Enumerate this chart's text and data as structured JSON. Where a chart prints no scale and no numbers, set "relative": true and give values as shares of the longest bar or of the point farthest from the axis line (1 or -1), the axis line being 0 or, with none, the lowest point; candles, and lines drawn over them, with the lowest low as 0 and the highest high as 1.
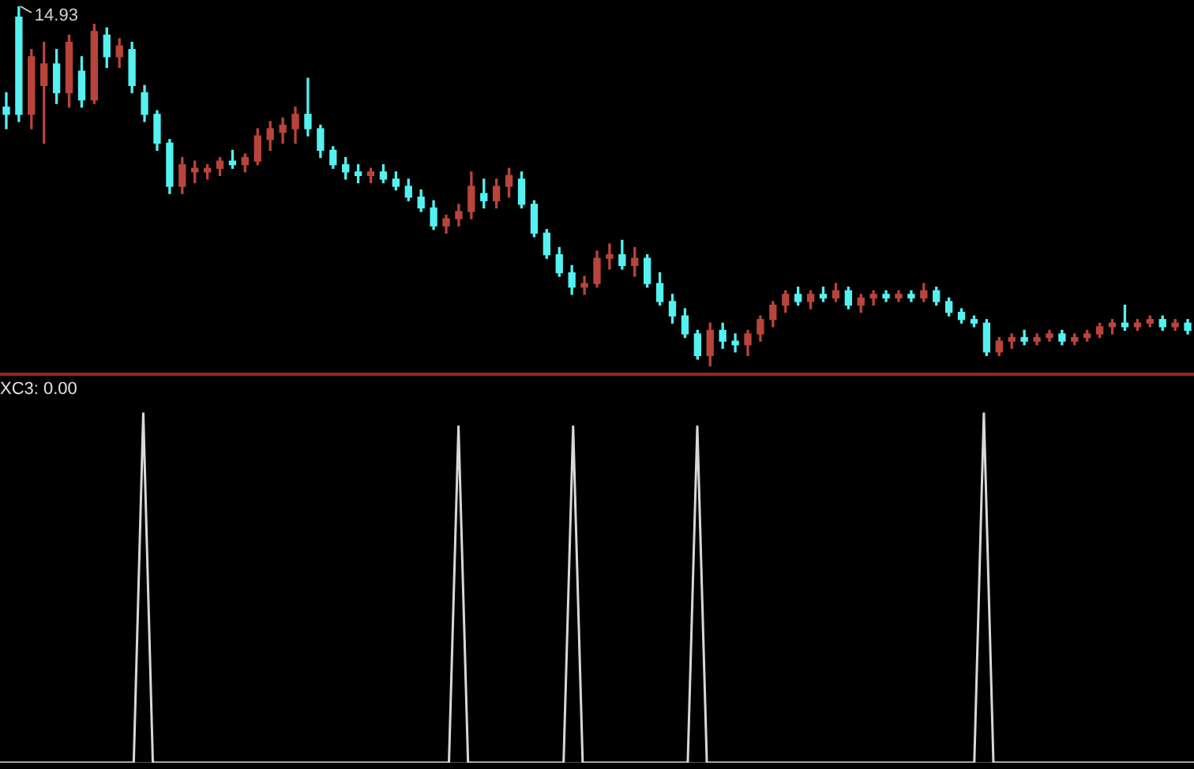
{
  "chart_data": [
    {
      "type": "candlestick",
      "relative": true,
      "annotations": [
        "14.93"
      ],
      "categories": [
        null,
        null,
        null,
        null,
        null,
        null,
        null,
        null,
        null,
        null,
        null,
        null,
        null,
        null,
        null,
        null,
        null,
        null,
        null,
        null,
        null,
        null,
        null,
        null,
        null,
        null,
        null,
        null,
        null,
        null,
        null,
        null,
        null,
        null,
        null,
        null,
        null,
        null,
        null,
        null,
        null,
        null,
        null,
        null,
        null,
        null,
        null,
        null,
        null,
        null,
        null,
        null,
        null,
        null,
        null,
        null,
        null,
        null,
        null,
        null,
        null,
        null,
        null,
        null,
        null,
        null,
        null,
        null,
        null,
        null,
        null,
        null,
        null,
        null,
        null,
        null,
        null,
        null,
        null,
        null,
        null,
        null,
        null,
        null,
        null,
        null,
        null,
        null,
        null,
        null,
        null,
        null,
        null,
        null,
        null
      ],
      "ohlc": [
        [
          0.72,
          0.76,
          0.66,
          0.7
        ],
        [
          0.97,
          1.0,
          0.68,
          0.7
        ],
        [
          0.7,
          0.88,
          0.66,
          0.86
        ],
        [
          0.78,
          0.9,
          0.62,
          0.84
        ],
        [
          0.84,
          0.88,
          0.73,
          0.76
        ],
        [
          0.76,
          0.92,
          0.72,
          0.9
        ],
        [
          0.82,
          0.86,
          0.72,
          0.74
        ],
        [
          0.74,
          0.95,
          0.73,
          0.93
        ],
        [
          0.92,
          0.94,
          0.83,
          0.86
        ],
        [
          0.86,
          0.91,
          0.83,
          0.89
        ],
        [
          0.88,
          0.9,
          0.76,
          0.78
        ],
        [
          0.76,
          0.78,
          0.68,
          0.7
        ],
        [
          0.7,
          0.71,
          0.6,
          0.62
        ],
        [
          0.62,
          0.63,
          0.48,
          0.5
        ],
        [
          0.5,
          0.58,
          0.48,
          0.56
        ],
        [
          0.54,
          0.57,
          0.51,
          0.55
        ],
        [
          0.54,
          0.56,
          0.52,
          0.55
        ],
        [
          0.55,
          0.58,
          0.53,
          0.57
        ],
        [
          0.57,
          0.6,
          0.55,
          0.56
        ],
        [
          0.56,
          0.59,
          0.54,
          0.58
        ],
        [
          0.57,
          0.66,
          0.56,
          0.64
        ],
        [
          0.63,
          0.68,
          0.6,
          0.66
        ],
        [
          0.65,
          0.69,
          0.62,
          0.67
        ],
        [
          0.66,
          0.72,
          0.62,
          0.7
        ],
        [
          0.7,
          0.8,
          0.64,
          0.66
        ],
        [
          0.66,
          0.67,
          0.58,
          0.6
        ],
        [
          0.6,
          0.61,
          0.55,
          0.56
        ],
        [
          0.56,
          0.58,
          0.52,
          0.54
        ],
        [
          0.54,
          0.56,
          0.51,
          0.53
        ],
        [
          0.53,
          0.55,
          0.51,
          0.54
        ],
        [
          0.54,
          0.56,
          0.51,
          0.52
        ],
        [
          0.52,
          0.54,
          0.49,
          0.5
        ],
        [
          0.5,
          0.52,
          0.46,
          0.47
        ],
        [
          0.47,
          0.49,
          0.43,
          0.44
        ],
        [
          0.44,
          0.46,
          0.38,
          0.39
        ],
        [
          0.39,
          0.42,
          0.37,
          0.41
        ],
        [
          0.41,
          0.45,
          0.39,
          0.43
        ],
        [
          0.43,
          0.54,
          0.41,
          0.5
        ],
        [
          0.48,
          0.52,
          0.44,
          0.46
        ],
        [
          0.46,
          0.52,
          0.44,
          0.5
        ],
        [
          0.5,
          0.55,
          0.47,
          0.53
        ],
        [
          0.52,
          0.54,
          0.44,
          0.45
        ],
        [
          0.45,
          0.46,
          0.36,
          0.37
        ],
        [
          0.37,
          0.38,
          0.3,
          0.31
        ],
        [
          0.31,
          0.33,
          0.25,
          0.26
        ],
        [
          0.26,
          0.28,
          0.2,
          0.22
        ],
        [
          0.22,
          0.25,
          0.2,
          0.23
        ],
        [
          0.23,
          0.32,
          0.22,
          0.3
        ],
        [
          0.3,
          0.34,
          0.27,
          0.31
        ],
        [
          0.31,
          0.35,
          0.27,
          0.28
        ],
        [
          0.28,
          0.33,
          0.25,
          0.3
        ],
        [
          0.3,
          0.31,
          0.22,
          0.23
        ],
        [
          0.23,
          0.26,
          0.17,
          0.18
        ],
        [
          0.18,
          0.2,
          0.12,
          0.14
        ],
        [
          0.14,
          0.16,
          0.08,
          0.09
        ],
        [
          0.09,
          0.1,
          0.02,
          0.03
        ],
        [
          0.03,
          0.12,
          0.0,
          0.1
        ],
        [
          0.1,
          0.12,
          0.05,
          0.07
        ],
        [
          0.07,
          0.09,
          0.04,
          0.06
        ],
        [
          0.06,
          0.1,
          0.03,
          0.09
        ],
        [
          0.09,
          0.14,
          0.07,
          0.13
        ],
        [
          0.13,
          0.18,
          0.11,
          0.17
        ],
        [
          0.17,
          0.21,
          0.15,
          0.2
        ],
        [
          0.2,
          0.22,
          0.17,
          0.18
        ],
        [
          0.18,
          0.21,
          0.16,
          0.2
        ],
        [
          0.2,
          0.22,
          0.18,
          0.19
        ],
        [
          0.19,
          0.23,
          0.18,
          0.21
        ],
        [
          0.21,
          0.22,
          0.16,
          0.17
        ],
        [
          0.17,
          0.2,
          0.15,
          0.19
        ],
        [
          0.19,
          0.21,
          0.17,
          0.2
        ],
        [
          0.2,
          0.21,
          0.18,
          0.19
        ],
        [
          0.19,
          0.21,
          0.18,
          0.2
        ],
        [
          0.2,
          0.21,
          0.18,
          0.19
        ],
        [
          0.19,
          0.23,
          0.18,
          0.21
        ],
        [
          0.21,
          0.22,
          0.17,
          0.18
        ],
        [
          0.18,
          0.19,
          0.14,
          0.15
        ],
        [
          0.15,
          0.16,
          0.12,
          0.13
        ],
        [
          0.13,
          0.14,
          0.11,
          0.12
        ],
        [
          0.12,
          0.13,
          0.03,
          0.04
        ],
        [
          0.04,
          0.08,
          0.03,
          0.07
        ],
        [
          0.07,
          0.09,
          0.05,
          0.08
        ],
        [
          0.08,
          0.1,
          0.06,
          0.07
        ],
        [
          0.07,
          0.09,
          0.06,
          0.08
        ],
        [
          0.08,
          0.1,
          0.07,
          0.09
        ],
        [
          0.09,
          0.1,
          0.06,
          0.07
        ],
        [
          0.07,
          0.09,
          0.06,
          0.08
        ],
        [
          0.08,
          0.1,
          0.07,
          0.09
        ],
        [
          0.09,
          0.12,
          0.08,
          0.11
        ],
        [
          0.11,
          0.13,
          0.09,
          0.12
        ],
        [
          0.12,
          0.17,
          0.1,
          0.11
        ],
        [
          0.11,
          0.13,
          0.1,
          0.12
        ],
        [
          0.12,
          0.14,
          0.11,
          0.13
        ],
        [
          0.13,
          0.14,
          0.1,
          0.11
        ],
        [
          0.11,
          0.13,
          0.1,
          0.12
        ],
        [
          0.12,
          0.13,
          0.09,
          0.1
        ]
      ]
    },
    {
      "type": "line",
      "relative": true,
      "title": "XC3: 0.00",
      "color": "#d8d8d8",
      "categories": [
        null,
        null,
        null,
        null,
        null,
        null,
        null,
        null,
        null,
        null,
        null,
        null,
        null,
        null,
        null,
        null,
        null,
        null,
        null,
        null,
        null,
        null,
        null,
        null,
        null,
        null,
        null,
        null,
        null,
        null,
        null,
        null,
        null,
        null,
        null,
        null,
        null,
        null,
        null,
        null,
        null,
        null,
        null,
        null,
        null,
        null,
        null,
        null,
        null,
        null,
        null,
        null,
        null,
        null,
        null,
        null,
        null,
        null,
        null,
        null,
        null,
        null,
        null,
        null,
        null,
        null,
        null,
        null,
        null,
        null,
        null,
        null,
        null,
        null,
        null,
        null,
        null,
        null,
        null,
        null,
        null,
        null,
        null,
        null,
        null,
        null,
        null,
        null,
        null,
        null,
        null,
        null,
        null,
        null,
        null,
        null,
        null,
        null,
        null,
        null,
        null,
        null,
        null,
        null,
        null,
        null,
        null,
        null,
        null,
        null,
        null,
        null,
        null,
        null,
        null,
        null,
        null,
        null,
        null,
        null,
        null,
        null,
        null,
        null,
        null,
        null
      ],
      "values": [
        0,
        0,
        0,
        0,
        0,
        0,
        0,
        0,
        0,
        0,
        0,
        0,
        0,
        0,
        0,
        1,
        0,
        0,
        0,
        0,
        0,
        0,
        0,
        0,
        0,
        0,
        0,
        0,
        0,
        0,
        0,
        0,
        0,
        0,
        0,
        0,
        0,
        0,
        0,
        0,
        0,
        0,
        0,
        0,
        0,
        0,
        0,
        0,
        0.96,
        0,
        0,
        0,
        0,
        0,
        0,
        0,
        0,
        0,
        0,
        0,
        0.96,
        0,
        0,
        0,
        0,
        0,
        0,
        0,
        0,
        0,
        0,
        0,
        0,
        0.96,
        0,
        0,
        0,
        0,
        0,
        0,
        0,
        0,
        0,
        0,
        0,
        0,
        0,
        0,
        0,
        0,
        0,
        0,
        0,
        0,
        0,
        0,
        0,
        0,
        0,
        0,
        0,
        0,
        0,
        1,
        0,
        0,
        0,
        0,
        0,
        0,
        0,
        0,
        0,
        0,
        0,
        0,
        0,
        0,
        0,
        0,
        0,
        0,
        0,
        0,
        0,
        0
      ]
    }
  ]
}
